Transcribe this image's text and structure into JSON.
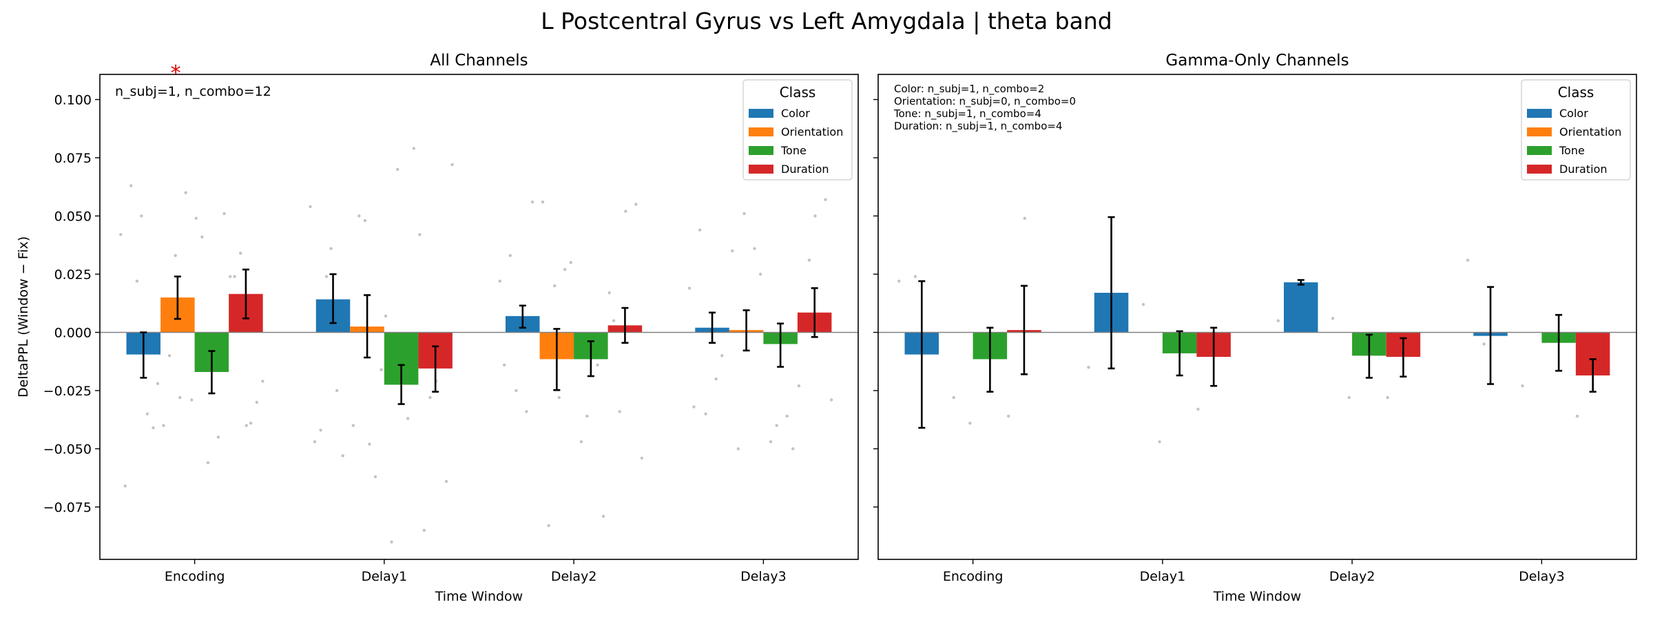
{
  "suptitle": "L Postcentral Gyrus vs Left Amygdala  |  theta band",
  "colors": {
    "Color": "#1f77b4",
    "Orientation": "#ff7f0e",
    "Tone": "#2ca02c",
    "Duration": "#d62728",
    "points": "#bdbdbd",
    "zero_line": "#808080",
    "significance": "#e00000"
  },
  "chart_data": [
    {
      "type": "bar",
      "title": "All Channels",
      "xlabel": "Time Window",
      "ylabel": "DeltaPPL (Window − Fix)",
      "ylim": [
        -0.0975,
        0.1108
      ],
      "yticks": [
        0.1,
        0.075,
        0.05,
        0.025,
        0.0,
        -0.025,
        -0.05,
        -0.075
      ],
      "ytick_labels": [
        "0.100",
        "0.075",
        "0.050",
        "0.025",
        "0.000",
        "−0.025",
        "−0.050",
        "−0.075"
      ],
      "categories": [
        "Encoding",
        "Delay1",
        "Delay2",
        "Delay3"
      ],
      "series": [
        {
          "name": "Color",
          "values": [
            -0.0095,
            0.0142,
            0.007,
            0.002
          ],
          "err_low": [
            -0.0195,
            0.004,
            0.002,
            -0.0045
          ],
          "err_high": [
            0.0,
            0.025,
            0.0115,
            0.0085
          ]
        },
        {
          "name": "Orientation",
          "values": [
            0.015,
            0.0025,
            -0.0115,
            0.001
          ],
          "err_low": [
            0.0058,
            -0.0108,
            -0.0248,
            -0.0078
          ],
          "err_high": [
            0.024,
            0.016,
            0.0015,
            0.0095
          ]
        },
        {
          "name": "Tone",
          "values": [
            -0.017,
            -0.0225,
            -0.0115,
            -0.005
          ],
          "err_low": [
            -0.0262,
            -0.0308,
            -0.0188,
            -0.0148
          ],
          "err_high": [
            -0.008,
            -0.014,
            -0.0038,
            0.0038
          ]
        },
        {
          "name": "Duration",
          "values": [
            0.0165,
            -0.0155,
            0.003,
            0.0085
          ],
          "err_low": [
            0.006,
            -0.0255,
            -0.0045,
            -0.002
          ],
          "err_high": [
            0.027,
            -0.006,
            0.0105,
            0.019
          ]
        }
      ],
      "points": [
        {
          "x": 0,
          "ys": [
            0.042,
            0.033,
            0.024,
            0.022,
            -0.029,
            -0.04,
            -0.041,
            -0.056,
            -0.021,
            -0.01,
            0.051,
            0.063,
            0.06,
            0.034,
            -0.035,
            0.041,
            -0.03,
            -0.04,
            -0.045,
            -0.066,
            -0.028,
            0.024,
            0.05,
            0.049,
            -0.039,
            -0.022
          ]
        },
        {
          "x": 1,
          "ys": [
            0.054,
            0.048,
            0.042,
            0.024,
            -0.016,
            -0.021,
            -0.053,
            0.07,
            0.072,
            0.05,
            0.079,
            -0.042,
            -0.062,
            -0.028,
            -0.025,
            -0.09,
            -0.064,
            -0.04,
            -0.037,
            -0.047,
            -0.048,
            -0.085,
            0.036,
            0.007
          ]
        },
        {
          "x": 2,
          "ys": [
            0.022,
            0.02,
            0.017,
            -0.025,
            0.03,
            0.052,
            0.056,
            -0.036,
            -0.054,
            -0.083,
            -0.079,
            0.033,
            0.027,
            -0.034,
            -0.034,
            -0.047,
            0.055,
            0.056,
            -0.014,
            -0.014,
            -0.028,
            0.005
          ]
        },
        {
          "x": 3,
          "ys": [
            0.019,
            0.051,
            -0.023,
            -0.035,
            0.025,
            0.05,
            -0.01,
            -0.04,
            -0.029,
            -0.05,
            -0.05,
            0.044,
            0.036,
            0.031,
            -0.02,
            -0.047,
            0.057,
            0.035,
            -0.036,
            -0.032
          ]
        }
      ],
      "significance_markers": [
        {
          "label": "*",
          "category": 0,
          "offset": -0.1
        }
      ],
      "annotation_lines": [
        "n_subj=1, n_combo=12"
      ],
      "legend": {
        "title": "Class",
        "entries": [
          "Color",
          "Orientation",
          "Tone",
          "Duration"
        ],
        "placement": "upper right"
      }
    },
    {
      "type": "bar",
      "title": "Gamma-Only Channels",
      "xlabel": "Time Window",
      "ylabel": "",
      "ylim": [
        -0.0975,
        0.1108
      ],
      "yticks": [
        0.1,
        0.075,
        0.05,
        0.025,
        0.0,
        -0.025,
        -0.05,
        -0.075
      ],
      "ytick_labels": [
        "",
        "",
        "",
        "",
        "",
        "",
        "",
        ""
      ],
      "categories": [
        "Encoding",
        "Delay1",
        "Delay2",
        "Delay3"
      ],
      "series": [
        {
          "name": "Color",
          "values": [
            -0.0095,
            0.017,
            0.0215,
            -0.0015
          ],
          "err_low": [
            -0.041,
            -0.0155,
            0.0205,
            -0.0222
          ],
          "err_high": [
            0.022,
            0.0495,
            0.0225,
            0.0195
          ]
        },
        {
          "name": "Orientation",
          "values": [
            null,
            null,
            null,
            null
          ],
          "err_low": [
            null,
            null,
            null,
            null
          ],
          "err_high": [
            null,
            null,
            null,
            null
          ]
        },
        {
          "name": "Tone",
          "values": [
            -0.0115,
            -0.009,
            -0.01,
            -0.0045
          ],
          "err_low": [
            -0.0255,
            -0.0185,
            -0.0195,
            -0.0165
          ],
          "err_high": [
            0.002,
            0.0005,
            -0.001,
            0.0075
          ]
        },
        {
          "name": "Duration",
          "values": [
            0.001,
            -0.0105,
            -0.0105,
            -0.0185
          ],
          "err_low": [
            -0.018,
            -0.023,
            -0.019,
            -0.0255
          ],
          "err_high": [
            0.02,
            0.002,
            -0.0025,
            -0.0115
          ]
        }
      ],
      "points": [
        {
          "x": 0,
          "ys": [
            0.022,
            -0.028,
            -0.036,
            0.024,
            -0.039,
            0.049
          ]
        },
        {
          "x": 1,
          "ys": [
            -0.015,
            0.012,
            -0.033,
            0.007,
            -0.047
          ]
        },
        {
          "x": 2,
          "ys": [
            0.005,
            0.006,
            -0.028,
            0.011,
            -0.028
          ]
        },
        {
          "x": 3,
          "ys": [
            0.031,
            -0.023,
            -0.036,
            -0.005
          ]
        }
      ],
      "significance_markers": [],
      "annotation_lines": [
        "Color: n_subj=1, n_combo=2",
        "Orientation: n_subj=0, n_combo=0",
        "Tone: n_subj=1, n_combo=4",
        "Duration: n_subj=1, n_combo=4"
      ],
      "legend": {
        "title": "Class",
        "entries": [
          "Color",
          "Orientation",
          "Tone",
          "Duration"
        ],
        "placement": "upper right"
      }
    }
  ]
}
